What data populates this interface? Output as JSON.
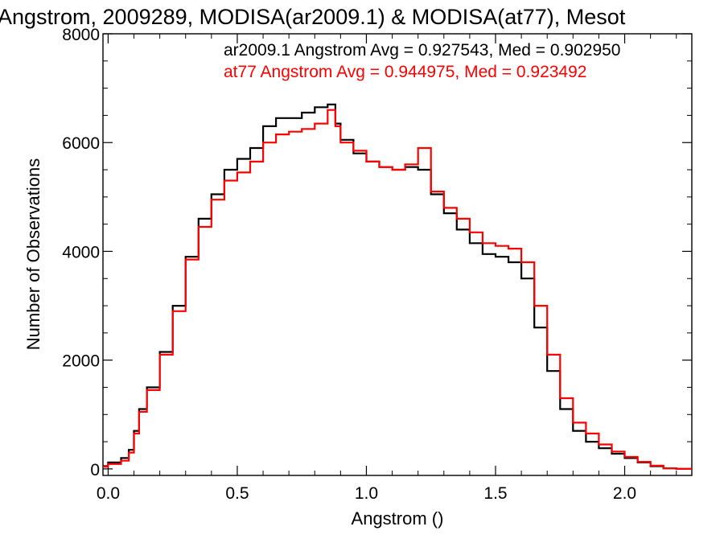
{
  "chart_data": {
    "type": "line",
    "title": "Angstrom, 2009289, MODISA(ar2009.1) & MODISA(at77), Mesot",
    "xlabel": "Angstrom ()",
    "ylabel": "Number of Observations",
    "xlim": [
      -0.02,
      2.26
    ],
    "ylim": [
      -120,
      8000
    ],
    "x_ticks": [
      "0.0",
      "0.5",
      "1.0",
      "1.5",
      "2.0"
    ],
    "y_ticks": [
      "0",
      "2000",
      "4000",
      "6000",
      "8000"
    ],
    "grid": false,
    "step": true,
    "annotations": [
      {
        "text": "ar2009.1 Angstrom Avg = 0.927543, Med = 0.902950",
        "color": "#000000"
      },
      {
        "text": "at77 Angstrom Avg = 0.944975, Med = 0.923492",
        "color": "#ff0000"
      }
    ],
    "series": [
      {
        "name": "ar2009.1",
        "color": "#000000",
        "x": [
          -0.02,
          0.0,
          0.05,
          0.08,
          0.1,
          0.12,
          0.15,
          0.2,
          0.25,
          0.3,
          0.35,
          0.4,
          0.45,
          0.5,
          0.55,
          0.6,
          0.65,
          0.7,
          0.75,
          0.8,
          0.85,
          0.88,
          0.9,
          0.95,
          1.0,
          1.05,
          1.1,
          1.15,
          1.2,
          1.25,
          1.3,
          1.35,
          1.4,
          1.45,
          1.5,
          1.55,
          1.6,
          1.65,
          1.7,
          1.75,
          1.8,
          1.85,
          1.9,
          1.95,
          2.0,
          2.05,
          2.1,
          2.15,
          2.2,
          2.26
        ],
        "y": [
          50,
          120,
          200,
          350,
          700,
          1100,
          1500,
          2150,
          3000,
          3900,
          4600,
          5050,
          5500,
          5700,
          5900,
          6300,
          6450,
          6450,
          6550,
          6650,
          6700,
          6350,
          6050,
          5800,
          5650,
          5550,
          5500,
          5550,
          5500,
          5050,
          4700,
          4400,
          4150,
          3950,
          3900,
          3800,
          3500,
          2600,
          1800,
          1100,
          700,
          500,
          380,
          280,
          200,
          120,
          50,
          10,
          0,
          0
        ]
      },
      {
        "name": "at77",
        "color": "#ff0000",
        "x": [
          -0.02,
          0.0,
          0.05,
          0.08,
          0.1,
          0.12,
          0.15,
          0.2,
          0.25,
          0.3,
          0.35,
          0.4,
          0.45,
          0.5,
          0.55,
          0.6,
          0.65,
          0.7,
          0.75,
          0.8,
          0.85,
          0.88,
          0.9,
          0.95,
          1.0,
          1.05,
          1.1,
          1.15,
          1.2,
          1.25,
          1.3,
          1.35,
          1.4,
          1.45,
          1.5,
          1.55,
          1.6,
          1.65,
          1.7,
          1.75,
          1.8,
          1.85,
          1.9,
          1.95,
          2.0,
          2.05,
          2.1,
          2.15,
          2.2,
          2.26
        ],
        "y": [
          40,
          90,
          150,
          300,
          650,
          1050,
          1450,
          2100,
          2900,
          3850,
          4450,
          4950,
          5300,
          5450,
          5650,
          6000,
          6150,
          6200,
          6250,
          6350,
          6600,
          6300,
          6000,
          5850,
          5650,
          5550,
          5500,
          5600,
          5900,
          5100,
          4800,
          4600,
          4350,
          4150,
          4100,
          4050,
          3800,
          3000,
          2100,
          1300,
          850,
          650,
          450,
          320,
          220,
          130,
          60,
          10,
          0,
          0
        ]
      }
    ]
  }
}
